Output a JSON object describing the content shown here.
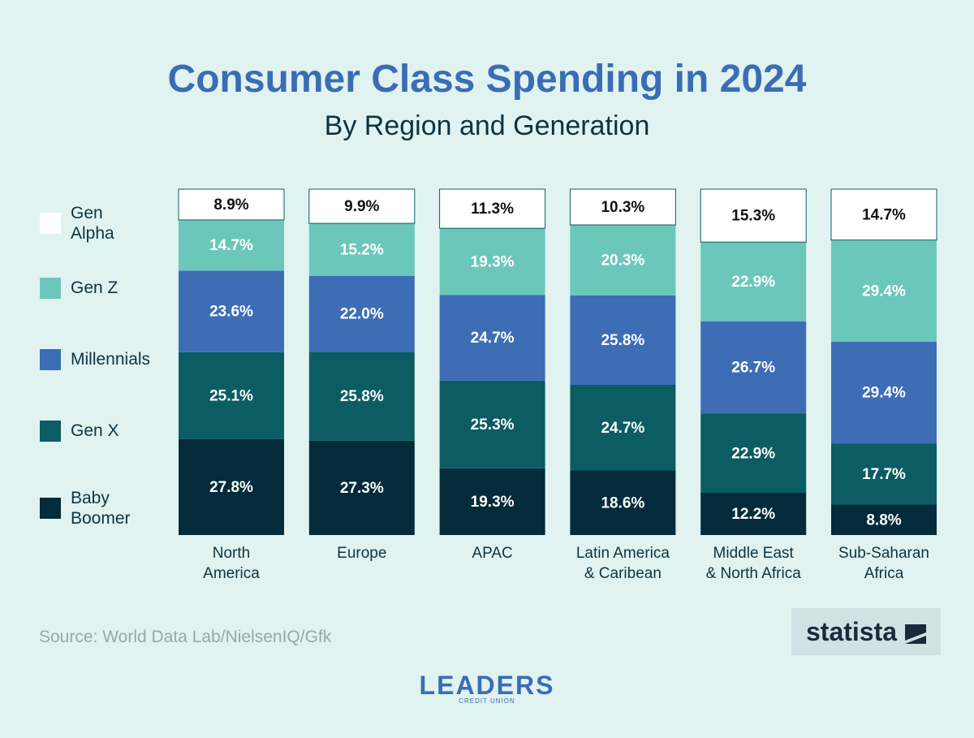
{
  "chart_data": {
    "type": "stacked_bar",
    "title": "Consumer Class Spending in 2024",
    "subtitle": "By Region and Generation",
    "categories": [
      "North\nAmerica",
      "Europe",
      "APAC",
      "Latin America\n& Caribean",
      "Middle East\n& North Africa",
      "Sub-Saharan\nAfrica"
    ],
    "series": [
      {
        "name": "Baby Boomer",
        "color": "#032b3a",
        "label_color": "#ffffff",
        "values": [
          27.8,
          27.3,
          19.3,
          18.6,
          12.2,
          8.8
        ],
        "value_labels": [
          "27.8%",
          "27.3%",
          "19.3%",
          "18.6%",
          "12.2%",
          "8.8%"
        ]
      },
      {
        "name": "Gen X",
        "color": "#0b5c63",
        "label_color": "#ffffff",
        "values": [
          25.1,
          25.8,
          25.3,
          24.7,
          22.9,
          17.7
        ],
        "value_labels": [
          "25.1%",
          "25.8%",
          "25.3%",
          "24.7%",
          "22.9%",
          "17.7%"
        ]
      },
      {
        "name": "Millennials",
        "color": "#3d6db5",
        "label_color": "#ffffff",
        "values": [
          23.6,
          22.0,
          24.7,
          25.8,
          26.7,
          29.4
        ],
        "value_labels": [
          "23.6%",
          "22.0%",
          "24.7%",
          "25.8%",
          "26.7%",
          "29.4%"
        ]
      },
      {
        "name": "Gen Z",
        "color": "#6cc7bb",
        "label_color": "#ffffff",
        "values": [
          14.7,
          15.2,
          19.3,
          20.3,
          22.9,
          29.4
        ],
        "value_labels": [
          "14.7%",
          "15.2%",
          "19.3%",
          "20.3%",
          "22.9%",
          "29.4%"
        ]
      },
      {
        "name": "Gen Alpha",
        "color": "#ffffff",
        "label_color": "#111111",
        "values": [
          8.9,
          9.9,
          11.3,
          10.3,
          15.3,
          14.7
        ],
        "value_labels": [
          "8.9%",
          "9.9%",
          "11.3%",
          "10.3%",
          "15.3%",
          "14.7%"
        ]
      }
    ],
    "source": "Source: World Data Lab/NielsenIQ/Gfk"
  },
  "branding": {
    "statista": "statista",
    "leaders": "LEADERS",
    "leaders_sub": "CREDIT UNION"
  }
}
